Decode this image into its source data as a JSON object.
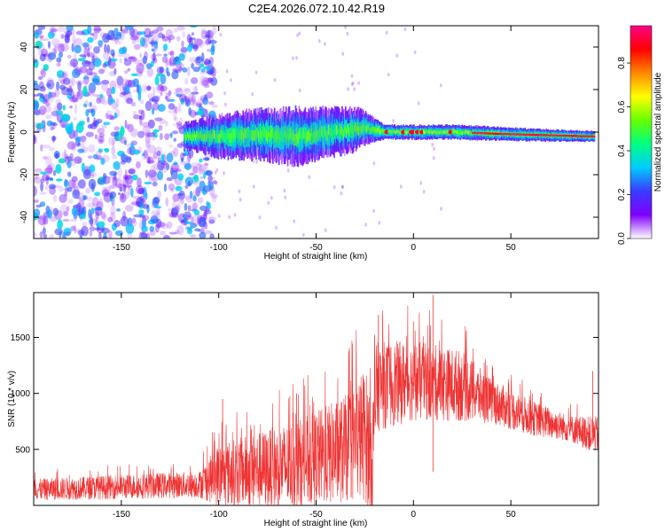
{
  "chart_data": [
    {
      "type": "heatmap",
      "title": "C2E4.2026.072.10.42.R19",
      "xlabel": "Height of straight line (km)",
      "ylabel": "Frequency (Hz)",
      "xlim": [
        -195,
        95
      ],
      "ylim": [
        -50,
        50
      ],
      "xticks": [
        -150,
        -100,
        -50,
        0,
        50
      ],
      "xtick_labels": [
        "-150",
        "-100",
        "-50",
        "0",
        "50"
      ],
      "yticks": [
        -40,
        -20,
        0,
        20,
        40
      ],
      "ytick_labels": [
        "-40",
        "-20",
        "0",
        "20",
        "40"
      ],
      "colorbar": {
        "label": "Normalized spectral amplitude",
        "range": [
          0,
          0.97
        ],
        "ticks": [
          0.0,
          0.2,
          0.4,
          0.6,
          0.8
        ],
        "tick_labels": [
          "0.0",
          "0.2",
          "0.4",
          "0.6",
          "0.8"
        ],
        "colormap": [
          "#ffffff",
          "#7f00ff",
          "#3a3aff",
          "#00ccff",
          "#00ff80",
          "#66ff00",
          "#ffff00",
          "#ff8800",
          "#ff0000",
          "#ff0088"
        ]
      },
      "noise_region_x": [
        -195,
        -102
      ],
      "band_center_hz": [
        {
          "x": -115,
          "f": -2
        },
        {
          "x": -100,
          "f": -2
        },
        {
          "x": -80,
          "f": -1
        },
        {
          "x": -60,
          "f": -2
        },
        {
          "x": -40,
          "f": 0
        },
        {
          "x": -25,
          "f": 2
        },
        {
          "x": -15,
          "f": 0
        },
        {
          "x": 0,
          "f": 0
        },
        {
          "x": 20,
          "f": 0
        },
        {
          "x": 50,
          "f": -1
        },
        {
          "x": 90,
          "f": -2
        }
      ],
      "band_halfwidth_hz": [
        {
          "x": -115,
          "w": 4
        },
        {
          "x": -100,
          "w": 6
        },
        {
          "x": -60,
          "w": 8
        },
        {
          "x": -30,
          "w": 6
        },
        {
          "x": -15,
          "w": 2
        },
        {
          "x": 30,
          "w": 2
        },
        {
          "x": 90,
          "w": 1.5
        }
      ]
    },
    {
      "type": "line",
      "xlabel": "Height of straight line (km)",
      "ylabel": "SNR (10 * v/v)",
      "xlim": [
        -195,
        95
      ],
      "ylim": [
        0,
        1900
      ],
      "xticks": [
        -150,
        -100,
        -50,
        0,
        50
      ],
      "xtick_labels": [
        "-150",
        "-100",
        "-50",
        "0",
        "50"
      ],
      "yticks": [
        500,
        1000,
        1500
      ],
      "ytick_labels": [
        "500",
        "1000",
        "1500"
      ],
      "color": "#ee3333",
      "envelope": [
        {
          "x": -195,
          "base": 150,
          "amp": 120
        },
        {
          "x": -110,
          "base": 200,
          "amp": 150
        },
        {
          "x": -100,
          "base": 300,
          "amp": 350
        },
        {
          "x": -60,
          "base": 400,
          "amp": 500
        },
        {
          "x": -35,
          "base": 550,
          "amp": 600
        },
        {
          "x": -25,
          "base": 700,
          "amp": 750
        },
        {
          "x": -21,
          "base": 500,
          "amp": 700
        },
        {
          "x": -19,
          "base": 1100,
          "amp": 500
        },
        {
          "x": 0,
          "base": 1150,
          "amp": 450
        },
        {
          "x": 25,
          "base": 1100,
          "amp": 400
        },
        {
          "x": 40,
          "base": 950,
          "amp": 250
        },
        {
          "x": 60,
          "base": 800,
          "amp": 200
        },
        {
          "x": 80,
          "base": 700,
          "amp": 150
        },
        {
          "x": 92,
          "base": 650,
          "amp": 200
        }
      ],
      "spikes": [
        {
          "x": 10,
          "y": 1880
        },
        {
          "x": -18,
          "y": 1700
        },
        {
          "x": 10,
          "y": 300
        },
        {
          "x": 92,
          "y": 1200
        },
        {
          "x": -98,
          "y": 950
        },
        {
          "x": -60,
          "y": 1000
        }
      ]
    }
  ]
}
